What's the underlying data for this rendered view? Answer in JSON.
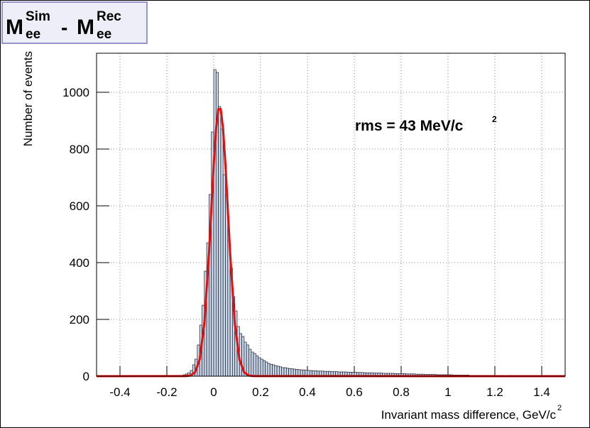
{
  "chart_data": {
    "type": "histogram",
    "title": [
      {
        "base": "M",
        "sup": "Sim",
        "sub": "ee"
      },
      "-",
      {
        "base": "M",
        "sup": "Rec",
        "sub": "ee"
      }
    ],
    "annotation": {
      "text": "rms = 43 MeV/c",
      "sup": "2"
    },
    "x_label": {
      "text": "Invariant mass difference,  GeV/c",
      "sup": "2"
    },
    "y_label": "Number of events",
    "xlim": [
      -0.5,
      1.5
    ],
    "ylim": [
      0,
      1137.5
    ],
    "xticks": [
      -0.4,
      -0.2,
      0,
      0.2,
      0.4,
      0.6,
      0.8,
      1,
      1.2,
      1.4
    ],
    "yticks": [
      0,
      200,
      400,
      600,
      800,
      1000
    ],
    "grid": true,
    "color": "#c9d9ea",
    "edge_color": "#1a1a2a",
    "bins": [
      -0.5,
      -0.49,
      -0.48,
      -0.47,
      -0.46,
      -0.45,
      -0.44,
      -0.43,
      -0.42,
      -0.41,
      -0.4,
      -0.39,
      -0.38,
      -0.37,
      -0.36,
      -0.35,
      -0.34,
      -0.33,
      -0.32,
      -0.31,
      -0.3,
      -0.29,
      -0.28,
      -0.27,
      -0.26,
      -0.25,
      -0.24,
      -0.23,
      -0.22,
      -0.21,
      -0.2,
      -0.19,
      -0.18,
      -0.17,
      -0.16,
      -0.15,
      -0.14,
      -0.13,
      -0.12,
      -0.11,
      -0.1,
      -0.09,
      -0.08,
      -0.07,
      -0.06,
      -0.05,
      -0.04,
      -0.03,
      -0.02,
      -0.01,
      0,
      0.01,
      0.02,
      0.03,
      0.04,
      0.05,
      0.06,
      0.07,
      0.08,
      0.09,
      0.1,
      0.11,
      0.12,
      0.13,
      0.14,
      0.15,
      0.16,
      0.17,
      0.18,
      0.19,
      0.2,
      0.21,
      0.22,
      0.23,
      0.24,
      0.25,
      0.26,
      0.27,
      0.28,
      0.29,
      0.3,
      0.31,
      0.32,
      0.33,
      0.34,
      0.35,
      0.36,
      0.37,
      0.38,
      0.39,
      0.4,
      0.41,
      0.42,
      0.43,
      0.44,
      0.45,
      0.46,
      0.47,
      0.48,
      0.49,
      0.5,
      0.51,
      0.52,
      0.53,
      0.54,
      0.55,
      0.56,
      0.57,
      0.58,
      0.59,
      0.6,
      0.61,
      0.62,
      0.63,
      0.64,
      0.65,
      0.66,
      0.67,
      0.68,
      0.69,
      0.7,
      0.71,
      0.72,
      0.73,
      0.74,
      0.75,
      0.76,
      0.77,
      0.78,
      0.79,
      0.8,
      0.81,
      0.82,
      0.83,
      0.84,
      0.85,
      0.86,
      0.87,
      0.88,
      0.89,
      0.9,
      0.91,
      0.92,
      0.93,
      0.94,
      0.95,
      0.96,
      0.97,
      0.98,
      0.99,
      1,
      1.01,
      1.02,
      1.03,
      1.04,
      1.05,
      1.06,
      1.07,
      1.08,
      1.09,
      1.1,
      1.11,
      1.12,
      1.13,
      1.14,
      1.15,
      1.16,
      1.17,
      1.18,
      1.19,
      1.2,
      1.21,
      1.22,
      1.23,
      1.24,
      1.25,
      1.26,
      1.27,
      1.28,
      1.29,
      1.3,
      1.31,
      1.32,
      1.33,
      1.34,
      1.35,
      1.36,
      1.37,
      1.38,
      1.39,
      1.4,
      1.41,
      1.42,
      1.43,
      1.44,
      1.45,
      1.46,
      1.47,
      1.48,
      1.49,
      1.5
    ],
    "values": [
      0,
      0,
      0,
      0,
      0,
      0,
      0,
      0,
      0,
      0,
      0,
      0,
      0,
      0,
      0,
      0,
      0,
      0,
      0,
      0,
      0,
      0,
      0,
      0,
      0,
      0,
      0,
      0,
      0,
      0,
      1,
      0,
      1,
      1,
      1,
      2,
      3,
      5,
      8,
      12,
      20,
      40,
      60,
      110,
      180,
      250,
      370,
      470,
      640,
      860,
      1080,
      1070,
      950,
      870,
      710,
      640,
      480,
      380,
      280,
      230,
      175,
      150,
      140,
      120,
      110,
      95,
      85,
      80,
      72,
      65,
      60,
      55,
      50,
      45,
      42,
      40,
      37,
      35,
      33,
      30,
      30,
      28,
      27,
      26,
      25,
      24,
      23,
      22,
      22,
      21,
      20,
      20,
      19,
      19,
      18,
      18,
      18,
      17,
      17,
      17,
      16,
      16,
      16,
      15,
      15,
      15,
      15,
      14,
      14,
      14,
      14,
      13,
      13,
      13,
      12,
      12,
      12,
      12,
      11,
      11,
      11,
      11,
      10,
      10,
      10,
      10,
      10,
      9,
      9,
      9,
      9,
      9,
      8,
      8,
      8,
      8,
      7,
      7,
      7,
      7,
      6,
      6,
      6,
      6,
      6,
      5,
      5,
      5,
      5,
      5,
      5,
      5,
      4,
      4,
      4,
      4,
      4,
      4,
      4,
      3,
      3,
      3,
      3,
      3,
      3,
      3,
      3,
      3,
      3,
      3,
      3,
      2,
      3,
      2,
      2,
      2,
      3,
      2,
      2,
      2,
      2,
      2,
      2,
      2,
      1,
      2,
      2,
      1,
      2,
      2,
      1,
      1,
      2,
      1,
      1,
      1,
      1,
      1,
      2,
      1
    ],
    "fit": {
      "color": "#e01010",
      "x": [
        -0.5,
        -0.12,
        -0.1,
        -0.08,
        -0.06,
        -0.04,
        -0.02,
        0,
        0.01,
        0.02,
        0.03,
        0.04,
        0.05,
        0.07,
        0.09,
        0.11,
        0.13,
        0.15,
        0.17,
        1.5
      ],
      "values": [
        0,
        0.3,
        2.3,
        13.5,
        58.5,
        186,
        435,
        746,
        871,
        941,
        941,
        871,
        746,
        435,
        186,
        58.5,
        13.5,
        2.3,
        0.3,
        0
      ]
    }
  }
}
